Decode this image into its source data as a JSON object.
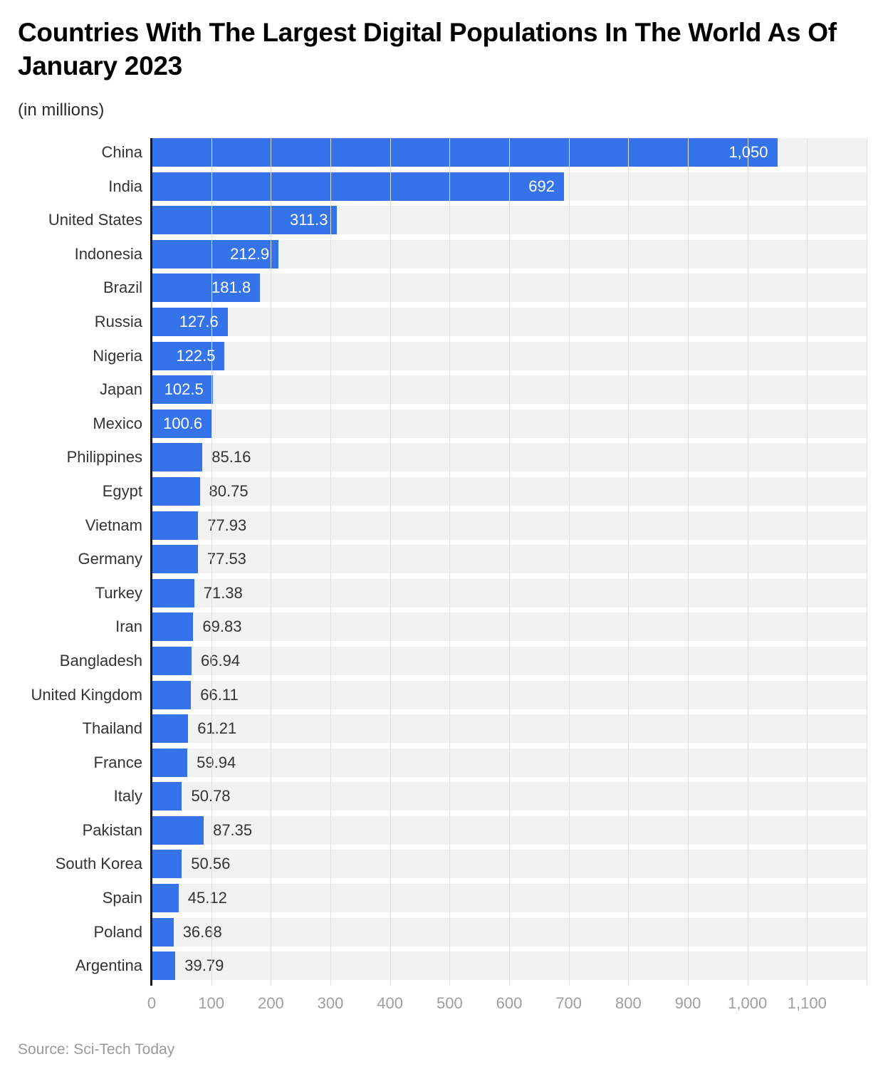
{
  "chart_data": {
    "type": "bar",
    "orientation": "horizontal",
    "title": "Countries With The Largest Digital Populations In The World As Of January 2023",
    "subtitle": "(in millions)",
    "source": "Source: Sci-Tech Today",
    "categories": [
      "China",
      "India",
      "United States",
      "Indonesia",
      "Brazil",
      "Russia",
      "Nigeria",
      "Japan",
      "Mexico",
      "Philippines",
      "Egypt",
      "Vietnam",
      "Germany",
      "Turkey",
      "Iran",
      "Bangladesh",
      "United Kingdom",
      "Thailand",
      "France",
      "Italy",
      "Pakistan",
      "South Korea",
      "Spain",
      "Poland",
      "Argentina"
    ],
    "values": [
      1050,
      692,
      311.3,
      212.9,
      181.8,
      127.6,
      122.5,
      102.5,
      100.6,
      85.16,
      80.75,
      77.93,
      77.53,
      71.38,
      69.83,
      66.94,
      66.11,
      61.21,
      59.94,
      50.78,
      87.35,
      50.56,
      45.12,
      36.68,
      39.79
    ],
    "value_labels": [
      "1,050",
      "692",
      "311.3",
      "212.9",
      "181.8",
      "127.6",
      "122.5",
      "102.5",
      "100.6",
      "85.16",
      "80.75",
      "77.93",
      "77.53",
      "71.38",
      "69.83",
      "66.94",
      "66.11",
      "61.21",
      "59.94",
      "50.78",
      "87.35",
      "50.56",
      "45.12",
      "36.68",
      "39.79"
    ],
    "label_inside": [
      true,
      true,
      true,
      true,
      true,
      true,
      true,
      true,
      true,
      false,
      false,
      false,
      false,
      false,
      false,
      false,
      false,
      false,
      false,
      false,
      false,
      false,
      false,
      false,
      false
    ],
    "xlabel": "",
    "ylabel": "",
    "xlim": [
      0,
      1200
    ],
    "grid": true,
    "legend": false,
    "x_ticks": {
      "values": [
        0,
        100,
        200,
        300,
        400,
        500,
        600,
        700,
        800,
        900,
        1000,
        1100
      ],
      "labels": [
        "0",
        "100",
        "200",
        "300",
        "400",
        "500",
        "600",
        "700",
        "800",
        "900",
        "1,000",
        "1,100"
      ]
    },
    "colors": {
      "bar": "#3573eb",
      "track": "#f2f2f2",
      "grid": "#e0e0e0",
      "axis_line": "#1a1a1a",
      "tick_label": "#9e9e9e",
      "country_label": "#333333",
      "value_inside": "#ffffff",
      "value_outside": "#333333"
    }
  }
}
